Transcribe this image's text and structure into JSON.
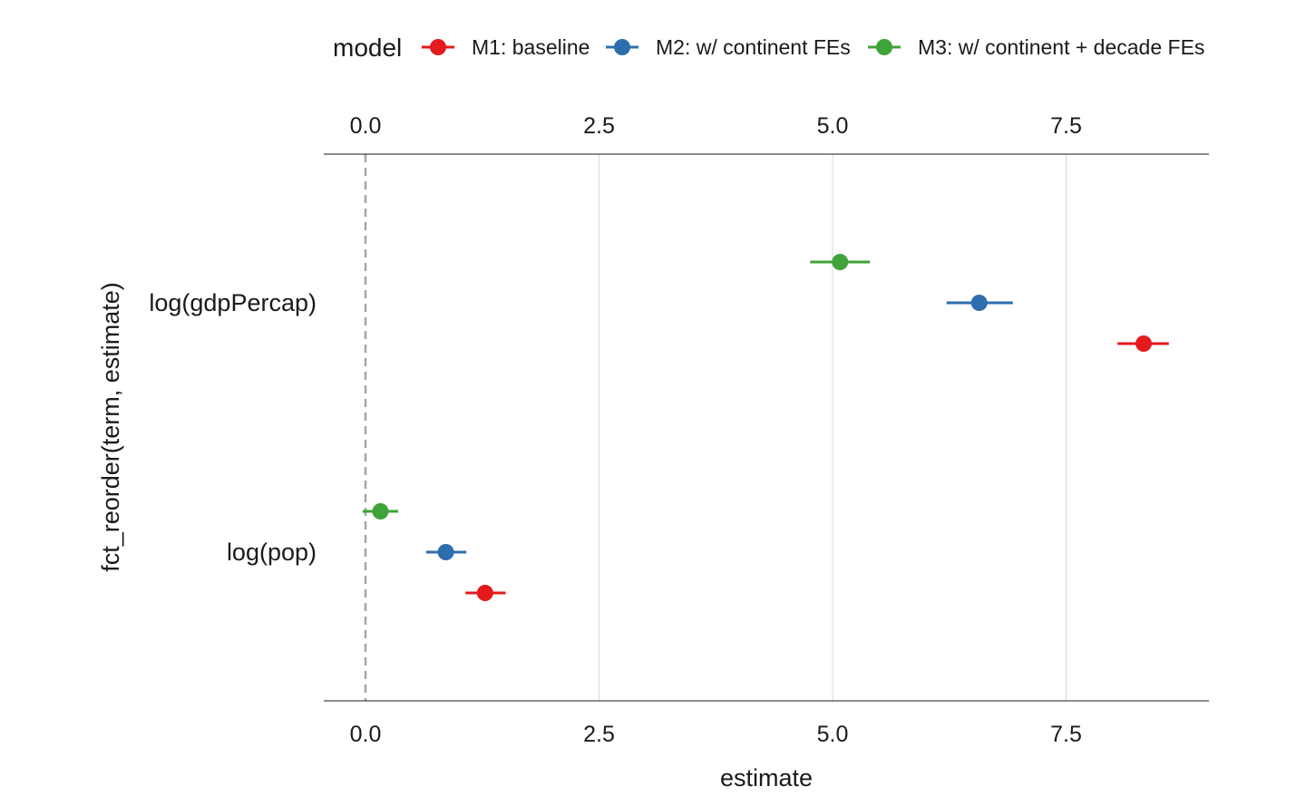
{
  "chart_data": {
    "type": "scatter",
    "subtype": "coefficient-plot",
    "title": "",
    "xlabel": "estimate",
    "ylabel": "fct_reorder(term, estimate)",
    "xlim": [
      -0.45,
      9.0
    ],
    "x_ticks": [
      0.0,
      2.5,
      5.0,
      7.5
    ],
    "x_tick_labels": [
      "0.0",
      "2.5",
      "5.0",
      "7.5"
    ],
    "x_axis_duplicated_top": true,
    "reference_line": {
      "x": 0,
      "style": "dashed"
    },
    "grid": {
      "vertical_major": true,
      "horizontal": false
    },
    "categories": [
      "log(pop)",
      "log(gdpPercap)"
    ],
    "legend": {
      "title": "model",
      "position": "top"
    },
    "series": [
      {
        "name": "M1: baseline",
        "color": "#e41a1c",
        "points": [
          {
            "term": "log(gdpPercap)",
            "estimate": 8.33,
            "conf_low": 8.05,
            "conf_high": 8.6
          },
          {
            "term": "log(pop)",
            "estimate": 1.28,
            "conf_low": 1.07,
            "conf_high": 1.5
          }
        ]
      },
      {
        "name": "M2: w/ continent FEs",
        "color": "#2e6dae",
        "points": [
          {
            "term": "log(gdpPercap)",
            "estimate": 6.57,
            "conf_low": 6.22,
            "conf_high": 6.93
          },
          {
            "term": "log(pop)",
            "estimate": 0.86,
            "conf_low": 0.65,
            "conf_high": 1.08
          }
        ]
      },
      {
        "name": "M3: w/ continent + decade FEs",
        "color": "#3fa33a",
        "points": [
          {
            "term": "log(gdpPercap)",
            "estimate": 5.08,
            "conf_low": 4.76,
            "conf_high": 5.4
          },
          {
            "term": "log(pop)",
            "estimate": 0.16,
            "conf_low": -0.03,
            "conf_high": 0.35
          }
        ]
      }
    ]
  }
}
